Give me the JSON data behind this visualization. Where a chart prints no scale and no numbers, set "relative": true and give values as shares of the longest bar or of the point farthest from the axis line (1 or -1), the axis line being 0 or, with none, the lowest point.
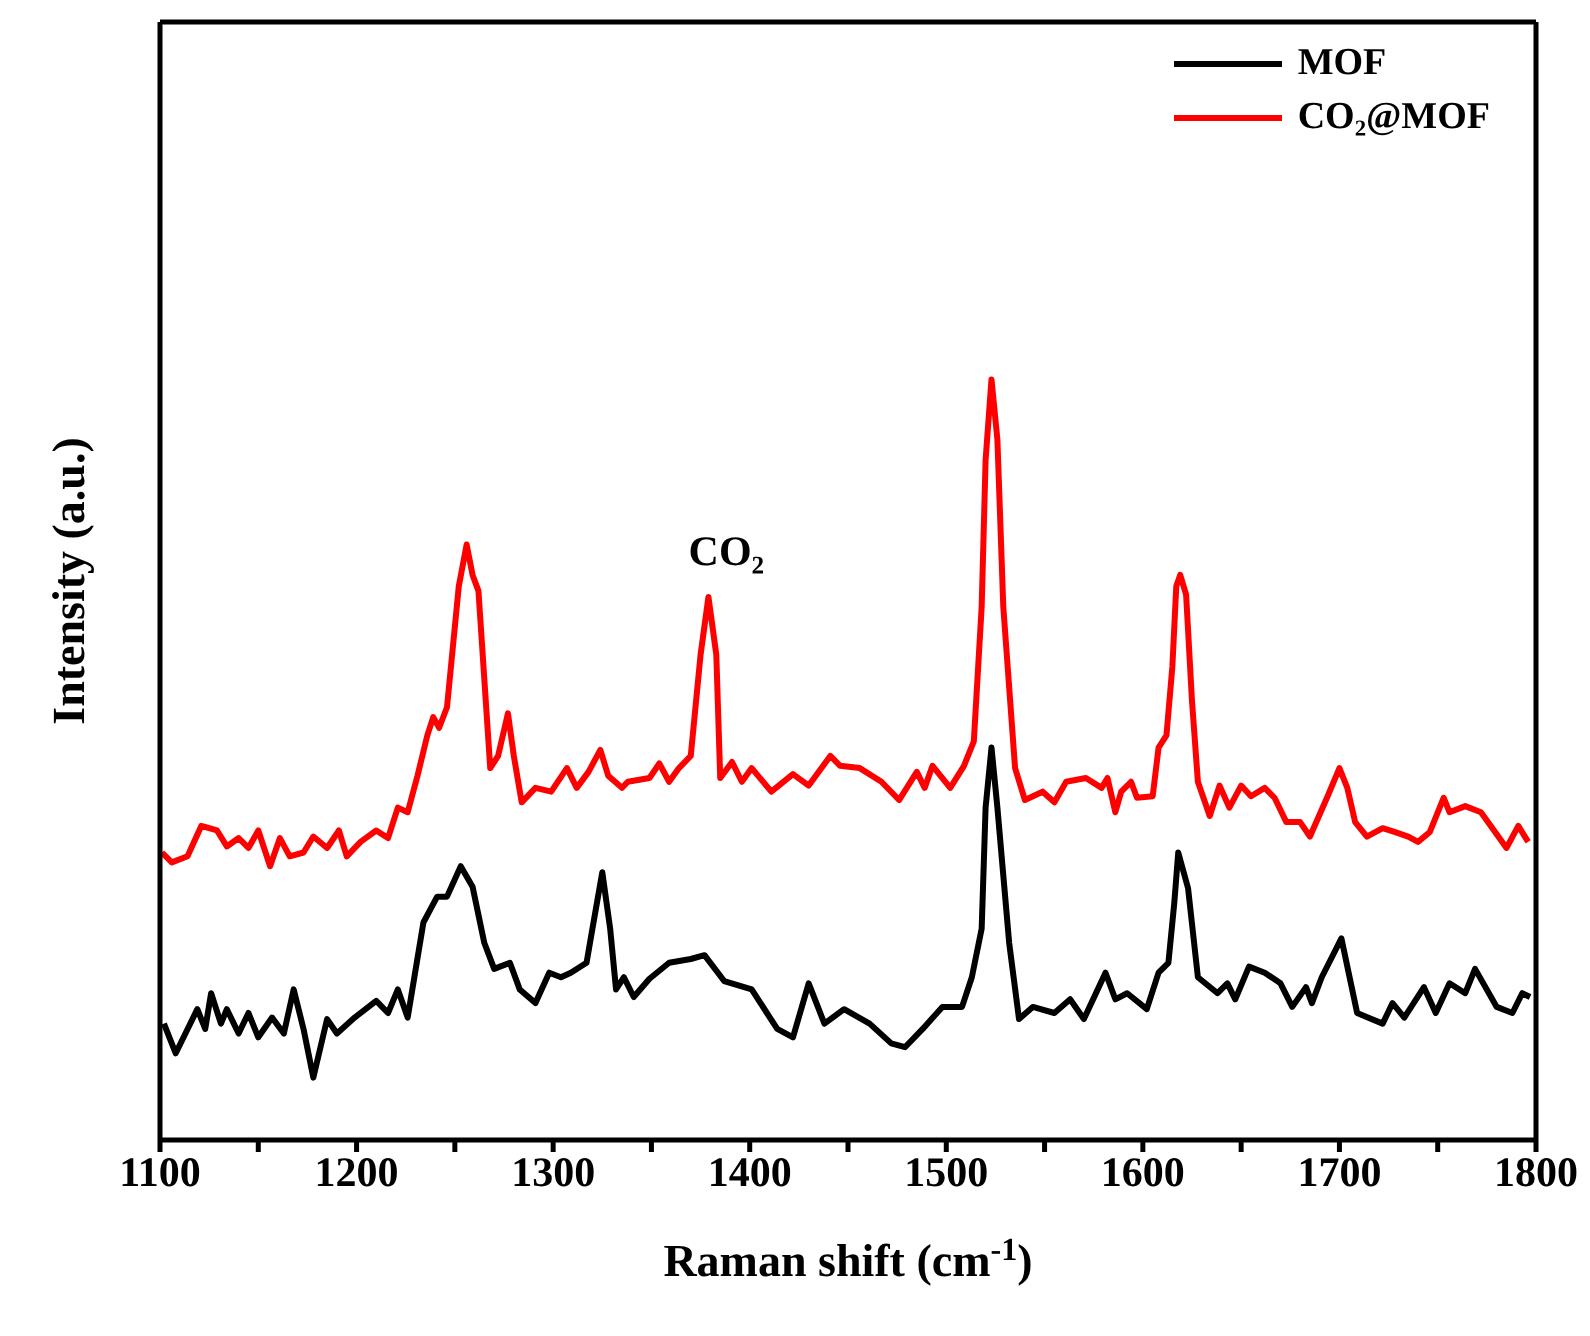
{
  "chart_data": {
    "type": "line",
    "xlabel": "Raman shift (cm$^{-1}$)",
    "ylabel": "Intensity (a.u.)",
    "relative": true,
    "xlim": [
      1100,
      1800
    ],
    "xticks": [
      1100,
      {
        "value": 1150,
        "label": null
      },
      1200,
      {
        "value": 1250,
        "label": null
      },
      1300,
      {
        "value": 1350,
        "label": null
      },
      1400,
      {
        "value": 1450,
        "label": null
      },
      1500,
      {
        "value": 1550,
        "label": null
      },
      1600,
      {
        "value": 1650,
        "label": null
      },
      1700,
      {
        "value": 1750,
        "label": null
      },
      1800
    ],
    "legend": "top right",
    "grid": false,
    "marker": "none",
    "line_style": "solid",
    "annotations": [
      {
        "text": "CO₂",
        "x": 1380,
        "y": 0.714
      }
    ],
    "series": [
      {
        "name": "MOF",
        "color": "#000000",
        "x": [
          1102,
          1108,
          1119,
          1123,
          1126,
          1131,
          1134,
          1140,
          1145,
          1150,
          1157,
          1163,
          1168,
          1173,
          1178,
          1185,
          1190,
          1199,
          1210,
          1216,
          1221,
          1226,
          1234,
          1241,
          1246,
          1253,
          1259,
          1265,
          1270,
          1278,
          1283,
          1291,
          1298,
          1304,
          1309,
          1317,
          1320,
          1325,
          1329,
          1332,
          1336,
          1341,
          1349,
          1359,
          1370,
          1377,
          1387,
          1401,
          1414,
          1422,
          1430,
          1438,
          1448,
          1461,
          1472,
          1479,
          1488,
          1498,
          1508,
          1513,
          1518,
          1520,
          1523,
          1526,
          1532,
          1537,
          1544,
          1555,
          1563,
          1570,
          1581,
          1586,
          1592,
          1602,
          1608,
          1613,
          1616,
          1618,
          1623,
          1628,
          1638,
          1643,
          1647,
          1654,
          1662,
          1670,
          1676,
          1683,
          1686,
          1691,
          1701,
          1709,
          1722,
          1727,
          1733,
          1743,
          1749,
          1756,
          1764,
          1769,
          1780,
          1788,
          1793,
          1797
        ],
        "values": [
          0.153,
          0.114,
          0.172,
          0.146,
          0.193,
          0.153,
          0.172,
          0.14,
          0.167,
          0.135,
          0.161,
          0.14,
          0.198,
          0.146,
          0.082,
          0.159,
          0.14,
          0.161,
          0.183,
          0.167,
          0.198,
          0.161,
          0.286,
          0.32,
          0.32,
          0.36,
          0.333,
          0.259,
          0.225,
          0.233,
          0.198,
          0.18,
          0.22,
          0.214,
          0.22,
          0.233,
          0.278,
          0.352,
          0.278,
          0.198,
          0.214,
          0.188,
          0.212,
          0.233,
          0.238,
          0.243,
          0.209,
          0.198,
          0.146,
          0.135,
          0.206,
          0.153,
          0.172,
          0.153,
          0.127,
          0.122,
          0.146,
          0.175,
          0.175,
          0.214,
          0.278,
          0.437,
          0.516,
          0.437,
          0.259,
          0.159,
          0.175,
          0.167,
          0.185,
          0.159,
          0.22,
          0.185,
          0.193,
          0.172,
          0.22,
          0.233,
          0.312,
          0.378,
          0.331,
          0.214,
          0.193,
          0.206,
          0.185,
          0.228,
          0.22,
          0.206,
          0.175,
          0.201,
          0.18,
          0.214,
          0.265,
          0.167,
          0.153,
          0.18,
          0.161,
          0.201,
          0.167,
          0.206,
          0.193,
          0.225,
          0.175,
          0.167,
          0.193,
          0.188
        ]
      },
      {
        "name": "CO₂@MOF",
        "color": "#ff0000",
        "x": [
          1101,
          1106,
          1114,
          1121,
          1129,
          1134,
          1140,
          1145,
          1150,
          1156,
          1161,
          1166,
          1173,
          1178,
          1185,
          1191,
          1195,
          1202,
          1210,
          1216,
          1221,
          1226,
          1231,
          1236,
          1239,
          1242,
          1246,
          1252,
          1256,
          1259,
          1262,
          1268,
          1272,
          1277,
          1280,
          1284,
          1291,
          1299,
          1307,
          1312,
          1318,
          1324,
          1328,
          1335,
          1338,
          1349,
          1354,
          1359,
          1364,
          1370,
          1375,
          1379,
          1383,
          1385,
          1391,
          1396,
          1401,
          1411,
          1422,
          1430,
          1441,
          1446,
          1456,
          1467,
          1476,
          1485,
          1489,
          1493,
          1502,
          1509,
          1514,
          1518,
          1520,
          1523,
          1526,
          1529,
          1535,
          1540,
          1549,
          1555,
          1561,
          1571,
          1579,
          1582,
          1586,
          1589,
          1594,
          1597,
          1605,
          1608,
          1612,
          1615,
          1617,
          1619,
          1622,
          1625,
          1628,
          1634,
          1639,
          1644,
          1650,
          1655,
          1662,
          1667,
          1673,
          1680,
          1685,
          1694,
          1700,
          1704,
          1708,
          1714,
          1722,
          1728,
          1735,
          1740,
          1746,
          1753,
          1756,
          1764,
          1772,
          1777,
          1785,
          1791,
          1796
        ],
        "values": [
          0.378,
          0.365,
          0.373,
          0.413,
          0.407,
          0.386,
          0.397,
          0.384,
          0.407,
          0.36,
          0.397,
          0.373,
          0.378,
          0.399,
          0.384,
          0.407,
          0.373,
          0.392,
          0.407,
          0.397,
          0.437,
          0.431,
          0.479,
          0.532,
          0.556,
          0.542,
          0.569,
          0.728,
          0.783,
          0.743,
          0.722,
          0.489,
          0.505,
          0.561,
          0.505,
          0.444,
          0.463,
          0.458,
          0.489,
          0.463,
          0.484,
          0.513,
          0.479,
          0.463,
          0.471,
          0.476,
          0.495,
          0.471,
          0.489,
          0.505,
          0.638,
          0.714,
          0.638,
          0.476,
          0.497,
          0.471,
          0.489,
          0.458,
          0.481,
          0.466,
          0.505,
          0.492,
          0.489,
          0.471,
          0.447,
          0.484,
          0.463,
          0.492,
          0.463,
          0.492,
          0.524,
          0.701,
          0.894,
          1,
          0.921,
          0.701,
          0.489,
          0.447,
          0.458,
          0.444,
          0.471,
          0.476,
          0.463,
          0.476,
          0.431,
          0.458,
          0.471,
          0.45,
          0.452,
          0.516,
          0.532,
          0.622,
          0.728,
          0.743,
          0.717,
          0.577,
          0.471,
          0.426,
          0.466,
          0.437,
          0.466,
          0.452,
          0.463,
          0.45,
          0.418,
          0.418,
          0.399,
          0.452,
          0.489,
          0.463,
          0.418,
          0.399,
          0.41,
          0.405,
          0.399,
          0.392,
          0.405,
          0.45,
          0.431,
          0.439,
          0.431,
          0.413,
          0.384,
          0.413,
          0.392
        ]
      }
    ]
  }
}
